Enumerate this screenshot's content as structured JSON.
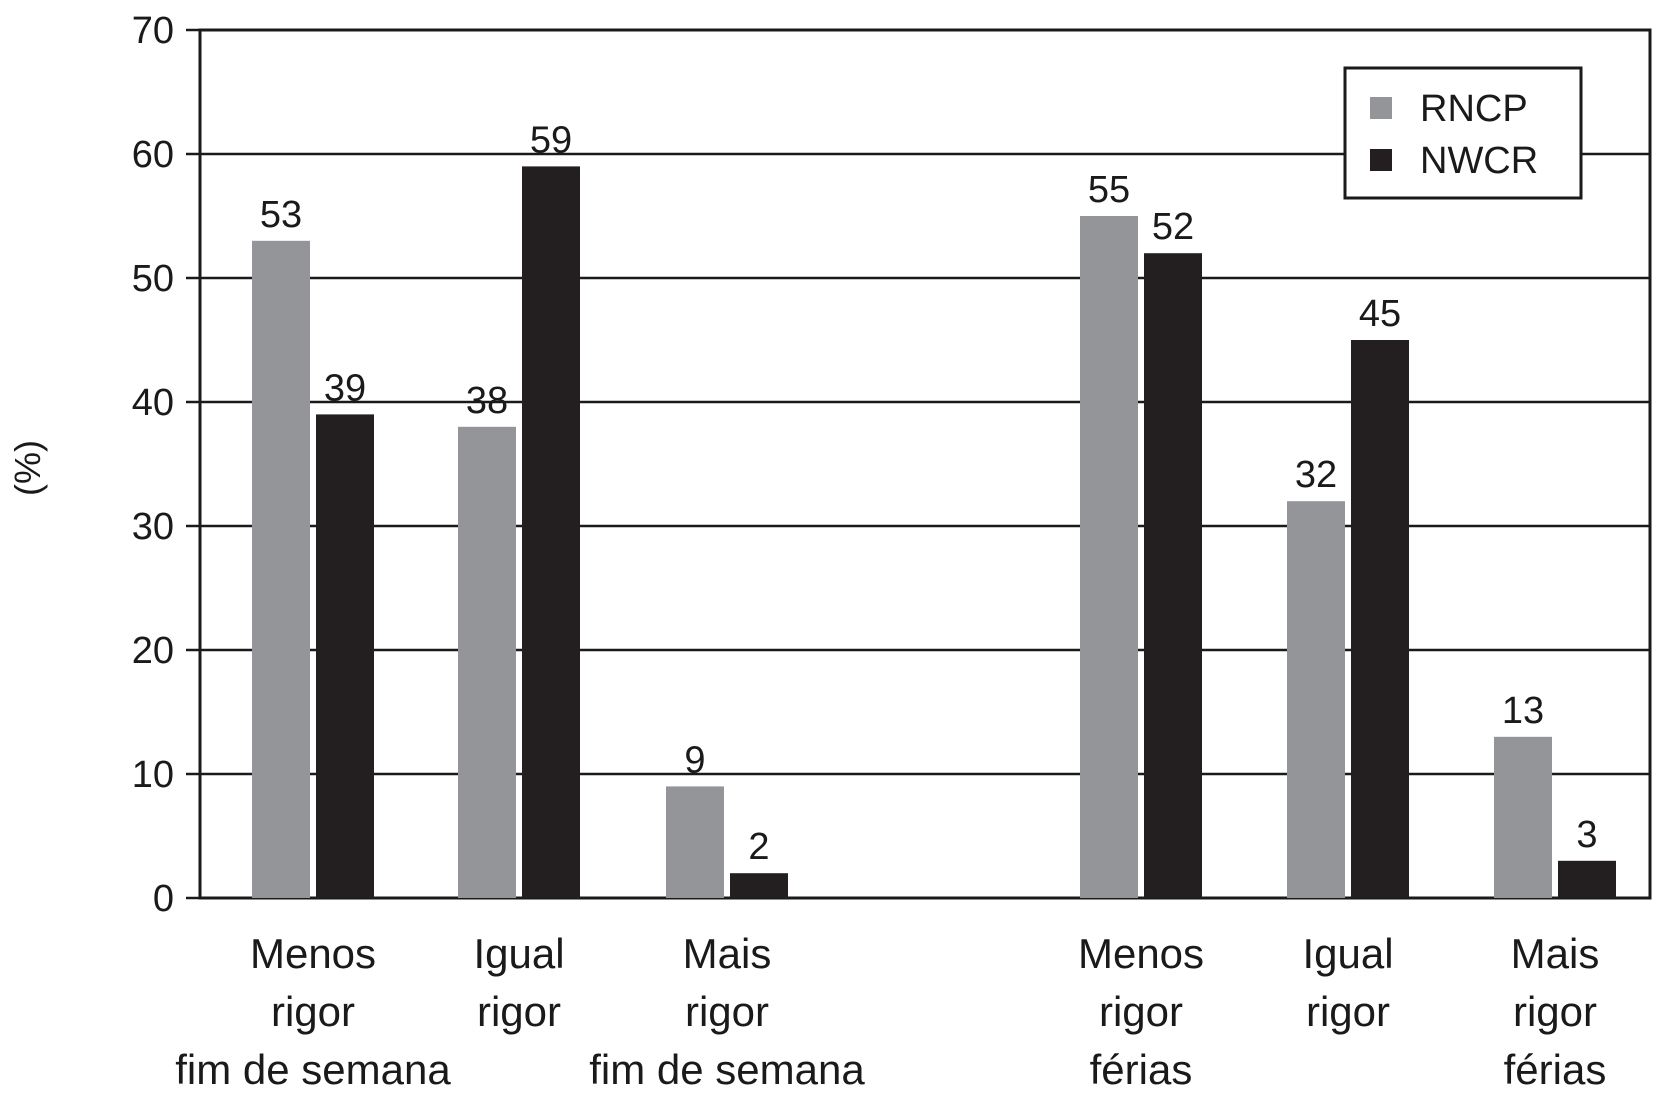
{
  "chart_data": {
    "type": "bar",
    "ylabel": "(%)",
    "ylim": [
      0,
      70
    ],
    "yticks": [
      0,
      10,
      20,
      30,
      40,
      50,
      60,
      70
    ],
    "grid": true,
    "legend_position": "top-right",
    "categories": [
      [
        "Menos",
        "rigor",
        "fim de semana"
      ],
      [
        "Igual",
        "rigor"
      ],
      [
        "Mais",
        "rigor",
        "fim de semana"
      ],
      [
        "Menos",
        "rigor",
        "férias"
      ],
      [
        "Igual",
        "rigor"
      ],
      [
        "Mais",
        "rigor",
        "férias"
      ]
    ],
    "series": [
      {
        "name": "RNCP",
        "color": "#939598",
        "values": [
          53,
          38,
          9,
          55,
          32,
          13
        ]
      },
      {
        "name": "NWCR",
        "color": "#231f20",
        "values": [
          39,
          59,
          2,
          52,
          45,
          3
        ]
      }
    ],
    "value_labels": {
      "RNCP": [
        "53",
        "38",
        "9",
        "55",
        "32",
        "13"
      ],
      "NWCR": [
        "39",
        "59",
        "2",
        "52",
        "45",
        "3"
      ]
    }
  }
}
